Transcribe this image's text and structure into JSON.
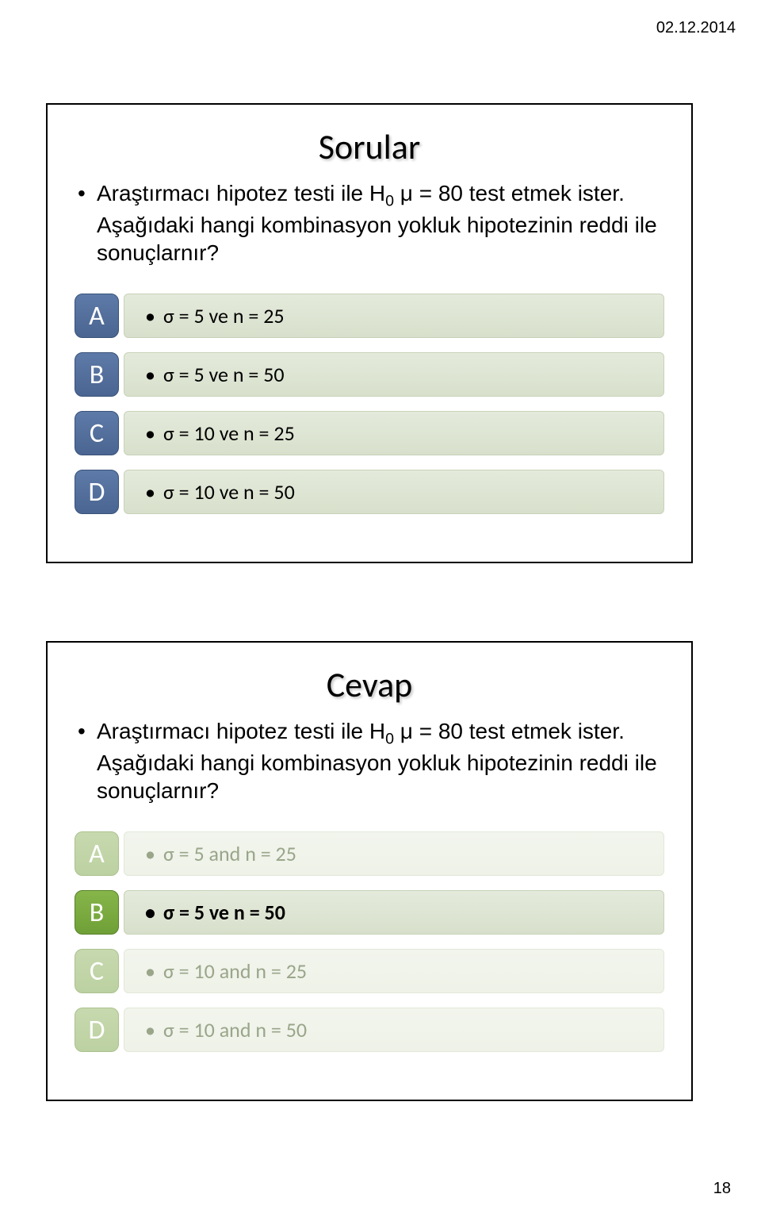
{
  "header": {
    "date": "02.12.2014",
    "page_number": "18"
  },
  "panel1": {
    "title": "Sorular",
    "question_html": "Araştırmacı hipotez testi ile H<sub>0</sub> μ = 80 test etmek ister. Aşağıdaki hangi kombinasyon yokluk hipotezinin reddi ile sonuçlarnır?",
    "badge_bg_top": "#5e7aa8",
    "badge_bg_bottom": "#4a6591",
    "bar_bg_top": "#e4eadb",
    "bar_bg_bottom": "#d8e0cc",
    "options": [
      {
        "letter": "A",
        "text": "σ = 5 ve n = 25"
      },
      {
        "letter": "B",
        "text": "σ = 5 ve n = 50"
      },
      {
        "letter": "C",
        "text": "σ = 10 ve n = 25"
      },
      {
        "letter": "D",
        "text": "σ = 10 ve n = 50"
      }
    ]
  },
  "panel2": {
    "title": "Cevap",
    "question_html": "Araştırmacı hipotez testi ile H<sub>0</sub> μ = 80 test etmek ister. Aşağıdaki hangi kombinasyon yokluk hipotezinin reddi ile sonuçlarnır?",
    "active_badge_bg_top": "#86b54a",
    "active_badge_bg_bottom": "#6fa037",
    "faded_badge_bg_top": "#c7d9af",
    "faded_badge_bg_bottom": "#bcd1a1",
    "active_bar_bg_top": "#e4eadb",
    "active_bar_bg_bottom": "#d8e0cc",
    "faded_bar_bg_top": "#f2f5ed",
    "faded_bar_bg_bottom": "#eef2e7",
    "faded_text_color": "#9aa58a",
    "options": [
      {
        "letter": "A",
        "text": "σ = 5 and n = 25",
        "correct": false
      },
      {
        "letter": "B",
        "text": "σ = 5 ve n = 50",
        "correct": true
      },
      {
        "letter": "C",
        "text": "σ = 10 and n = 25",
        "correct": false
      },
      {
        "letter": "D",
        "text": "σ = 10 and n = 50",
        "correct": false
      }
    ]
  }
}
